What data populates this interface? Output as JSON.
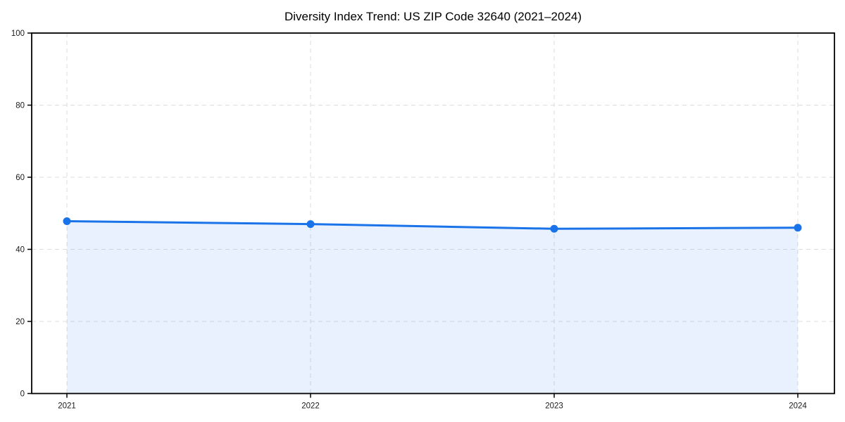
{
  "chart_data": {
    "type": "area",
    "title": "Diversity Index Trend: US ZIP Code 32640 (2021–2024)",
    "categories": [
      "2021",
      "2022",
      "2023",
      "2024"
    ],
    "values": [
      47.8,
      47.0,
      45.7,
      46.0
    ],
    "xlabel": "",
    "ylabel": "",
    "ylim": [
      0,
      100
    ],
    "yticks": [
      0,
      20,
      40,
      60,
      80,
      100
    ],
    "grid": true,
    "grid_style": "dashed",
    "legend": false,
    "line_color": "#1a73e8",
    "marker_color": "#1a73e8",
    "fill_color": "#1a73e8",
    "fill_opacity": 0.1,
    "grid_color": "#dddddd",
    "axis_color": "#000000",
    "text_color": "#1a1a1a",
    "background": "#ffffff"
  }
}
